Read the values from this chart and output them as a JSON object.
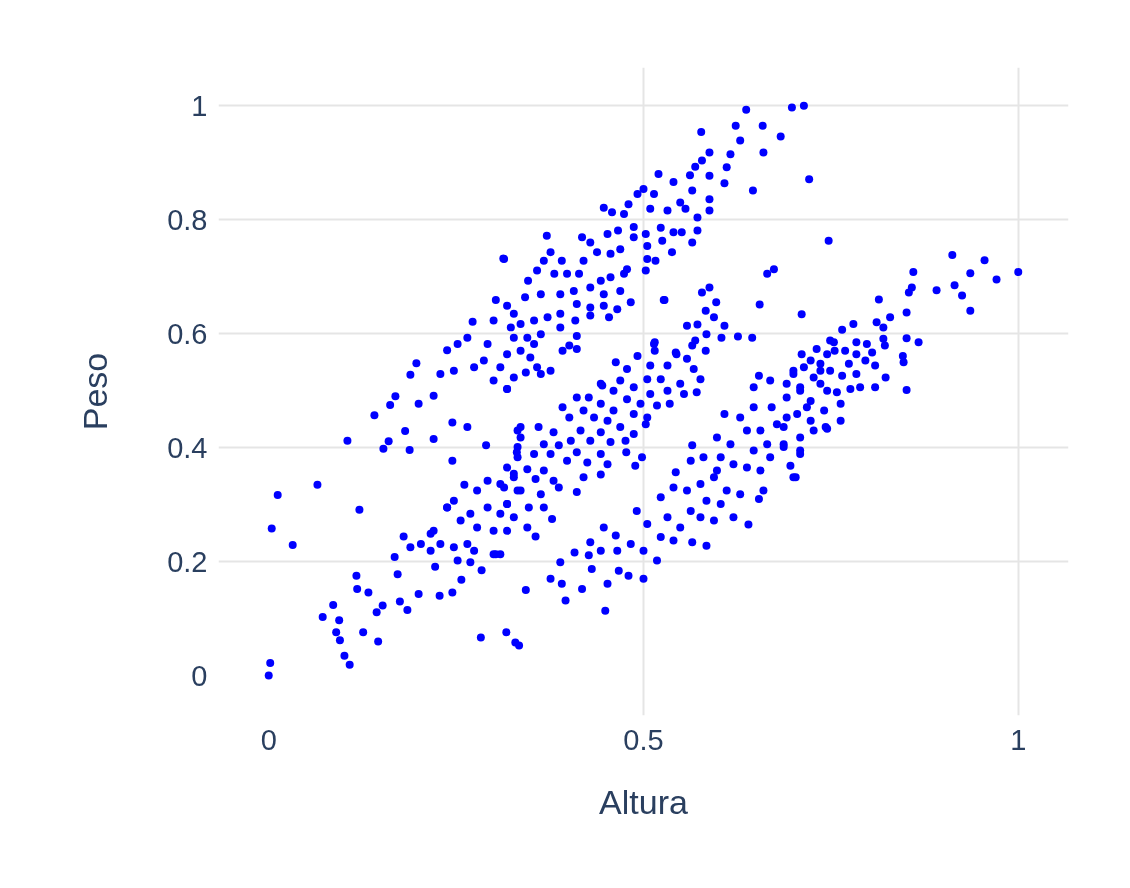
{
  "chart_data": {
    "type": "scatter",
    "xlabel": "Altura",
    "ylabel": "Peso",
    "color": "#0000ff",
    "marker": "circle",
    "grid": true,
    "xlim": [
      -0.067,
      1.067
    ],
    "ylim": [
      -0.07,
      1.067
    ],
    "xticks": [
      0,
      0.5,
      1
    ],
    "yticks": [
      0,
      0.2,
      0.4,
      0.6,
      0.8,
      1
    ],
    "x": [
      0.0,
      0.002,
      0.004,
      0.012,
      0.032,
      0.065,
      0.105,
      0.121,
      0.072,
      0.086,
      0.094,
      0.09,
      0.095,
      0.101,
      0.108,
      0.126,
      0.146,
      0.117,
      0.118,
      0.133,
      0.144,
      0.152,
      0.168,
      0.172,
      0.18,
      0.189,
      0.175,
      0.185,
      0.2,
      0.222,
      0.228,
      0.245,
      0.257,
      0.284,
      0.216,
      0.238,
      0.261,
      0.3,
      0.283,
      0.317,
      0.329,
      0.334,
      0.141,
      0.162,
      0.169,
      0.153,
      0.16,
      0.188,
      0.182,
      0.2,
      0.22,
      0.245,
      0.29,
      0.245,
      0.265,
      0.313,
      0.303,
      0.272,
      0.238,
      0.197,
      0.189,
      0.22,
      0.3,
      0.318,
      0.265,
      0.252,
      0.287,
      0.323,
      0.327,
      0.292,
      0.274,
      0.229,
      0.247,
      0.3,
      0.309,
      0.637,
      0.698,
      0.714,
      0.577,
      0.623,
      0.659,
      0.683,
      0.66,
      0.629,
      0.616,
      0.588,
      0.578,
      0.569,
      0.611,
      0.588,
      0.562,
      0.608,
      0.721,
      0.646,
      0.52,
      0.54,
      0.565,
      0.5,
      0.514,
      0.492,
      0.588,
      0.588,
      0.549,
      0.48,
      0.447,
      0.458,
      0.474,
      0.509,
      0.532,
      0.556,
      0.572,
      0.747,
      0.487,
      0.523,
      0.54,
      0.572,
      0.551,
      0.565,
      0.525,
      0.538,
      0.503,
      0.505,
      0.466,
      0.452,
      0.418,
      0.371,
      0.429,
      0.487,
      0.469,
      0.456,
      0.438,
      0.376,
      0.314,
      0.505,
      0.516,
      0.503,
      0.478,
      0.42,
      0.391,
      0.367,
      0.414,
      0.398,
      0.381,
      0.358,
      0.346,
      0.443,
      0.456,
      0.474,
      0.429,
      0.407,
      0.389,
      0.363,
      0.342,
      0.318,
      0.447,
      0.469,
      0.483,
      0.527,
      0.411,
      0.429,
      0.447,
      0.465,
      0.389,
      0.372,
      0.354,
      0.336,
      0.429,
      0.454,
      0.409,
      0.389,
      0.363,
      0.345,
      0.327,
      0.411,
      0.401,
      0.411,
      0.392,
      0.354,
      0.336,
      0.318,
      0.349,
      0.358,
      0.343,
      0.376,
      0.327,
      0.363,
      0.318,
      0.665,
      0.674,
      0.578,
      0.588,
      0.528,
      0.597,
      0.655,
      0.711,
      0.583,
      0.594,
      0.608,
      0.558,
      0.572,
      0.584,
      0.604,
      0.626,
      0.645,
      0.515,
      0.515,
      0.569,
      0.583,
      0.492,
      0.543,
      0.558,
      0.567,
      0.463,
      0.509,
      0.532,
      0.478,
      0.576,
      0.549,
      0.445,
      0.505,
      0.523,
      0.469,
      0.487,
      0.532,
      0.554,
      0.571,
      0.46,
      0.509,
      0.411,
      0.427,
      0.478,
      0.496,
      0.443,
      0.518,
      0.535,
      0.392,
      0.42,
      0.46,
      0.487,
      0.505,
      0.401,
      0.434,
      0.452,
      0.503,
      0.469,
      0.336,
      0.36,
      0.38,
      0.416,
      0.443,
      0.487,
      0.403,
      0.429,
      0.456,
      0.476,
      0.336,
      0.367,
      0.387,
      0.331,
      0.354,
      0.376,
      0.411,
      0.443,
      0.477,
      0.498,
      0.398,
      0.425,
      0.452,
      0.489,
      0.318,
      0.345,
      0.367,
      0.327,
      0.356,
      0.38,
      0.42,
      0.443,
      0.314,
      0.336,
      0.363,
      0.387,
      0.411,
      0.318,
      0.347,
      0.367,
      0.327,
      0.378,
      0.345,
      0.318,
      0.356,
      0.309,
      0.343,
      0.514,
      0.443,
      0.544,
      0.565,
      0.238,
      0.247,
      0.278,
      0.292,
      0.309,
      0.327,
      0.332,
      0.269,
      0.292,
      0.309,
      0.318,
      0.256,
      0.278,
      0.3,
      0.22,
      0.229,
      0.247,
      0.265,
      0.274,
      0.252,
      0.269,
      0.303,
      0.203,
      0.216,
      0.332,
      0.332,
      0.332,
      0.376,
      0.391,
      0.396,
      0.418,
      0.449,
      0.389,
      0.408,
      0.427,
      0.431,
      0.452,
      0.467,
      0.48,
      0.5,
      0.429,
      0.447,
      0.443,
      0.463,
      0.465,
      0.483,
      0.491,
      0.505,
      0.5,
      0.518,
      0.523,
      0.523,
      0.54,
      0.532,
      0.549,
      0.54,
      0.565,
      0.584,
      0.563,
      0.576,
      0.594,
      0.558,
      0.543,
      0.565,
      0.563,
      0.58,
      0.576,
      0.594,
      0.584,
      0.603,
      0.62,
      0.64,
      0.611,
      0.629,
      0.654,
      0.66,
      0.608,
      0.598,
      0.616,
      0.629,
      0.638,
      0.603,
      0.62,
      0.638,
      0.656,
      0.598,
      0.647,
      0.665,
      0.656,
      0.647,
      0.647,
      0.654,
      0.669,
      0.671,
      0.678,
      0.687,
      0.7,
      0.709,
      0.691,
      0.7,
      0.709,
      0.718,
      0.727,
      0.723,
      0.736,
      0.745,
      0.755,
      0.749,
      0.743,
      0.691,
      0.669,
      0.912,
      0.955,
      1.0,
      0.936,
      0.971,
      0.86,
      0.858,
      0.891,
      0.915,
      0.925,
      0.936,
      0.814,
      0.854,
      0.851,
      0.829,
      0.811,
      0.78,
      0.765,
      0.82,
      0.851,
      0.867,
      0.82,
      0.754,
      0.784,
      0.798,
      0.822,
      0.731,
      0.769,
      0.805,
      0.846,
      0.711,
      0.745,
      0.784,
      0.847,
      0.796,
      0.774,
      0.736,
      0.714,
      0.809,
      0.749,
      0.784,
      0.765,
      0.823,
      0.7,
      0.727,
      0.709,
      0.736,
      0.789,
      0.809,
      0.851,
      0.758,
      0.776,
      0.691,
      0.723,
      0.763,
      0.741,
      0.705,
      0.723,
      0.763,
      0.745,
      0.687,
      0.709,
      0.687,
      0.709,
      0.696,
      0.703
    ],
    "values": [
      0.0,
      0.022,
      0.258,
      0.317,
      0.229,
      0.335,
      0.412,
      0.291,
      0.103,
      0.124,
      0.097,
      0.076,
      0.062,
      0.035,
      0.019,
      0.076,
      0.06,
      0.175,
      0.152,
      0.146,
      0.111,
      0.123,
      0.208,
      0.178,
      0.244,
      0.225,
      0.13,
      0.115,
      0.143,
      0.191,
      0.14,
      0.146,
      0.168,
      0.185,
      0.249,
      0.295,
      0.335,
      0.213,
      0.067,
      0.076,
      0.058,
      0.053,
      0.457,
      0.475,
      0.49,
      0.398,
      0.411,
      0.396,
      0.429,
      0.477,
      0.415,
      0.377,
      0.404,
      0.444,
      0.436,
      0.732,
      0.659,
      0.621,
      0.571,
      0.548,
      0.528,
      0.491,
      0.518,
      0.503,
      0.593,
      0.582,
      0.553,
      0.611,
      0.635,
      0.582,
      0.541,
      0.529,
      0.535,
      0.623,
      0.541,
      0.993,
      0.997,
      1.0,
      0.954,
      0.965,
      0.965,
      0.946,
      0.918,
      0.939,
      0.915,
      0.918,
      0.904,
      0.893,
      0.892,
      0.877,
      0.878,
      0.864,
      0.871,
      0.851,
      0.88,
      0.866,
      0.851,
      0.854,
      0.845,
      0.845,
      0.836,
      0.816,
      0.83,
      0.827,
      0.821,
      0.813,
      0.81,
      0.819,
      0.816,
      0.819,
      0.804,
      0.763,
      0.787,
      0.786,
      0.778,
      0.781,
      0.778,
      0.76,
      0.763,
      0.743,
      0.775,
      0.754,
      0.781,
      0.775,
      0.769,
      0.772,
      0.76,
      0.769,
      0.748,
      0.74,
      0.743,
      0.743,
      0.731,
      0.731,
      0.728,
      0.711,
      0.713,
      0.728,
      0.728,
      0.728,
      0.705,
      0.705,
      0.705,
      0.711,
      0.693,
      0.693,
      0.699,
      0.705,
      0.681,
      0.675,
      0.669,
      0.669,
      0.664,
      0.649,
      0.669,
      0.675,
      0.655,
      0.659,
      0.652,
      0.646,
      0.649,
      0.643,
      0.635,
      0.629,
      0.623,
      0.617,
      0.632,
      0.629,
      0.623,
      0.611,
      0.599,
      0.593,
      0.593,
      0.596,
      0.579,
      0.573,
      0.57,
      0.582,
      0.57,
      0.564,
      0.558,
      0.541,
      0.532,
      0.535,
      0.523,
      0.529,
      0.503,
      0.705,
      0.713,
      0.672,
      0.681,
      0.659,
      0.655,
      0.651,
      0.634,
      0.64,
      0.629,
      0.614,
      0.614,
      0.616,
      0.599,
      0.593,
      0.595,
      0.593,
      0.585,
      0.57,
      0.588,
      0.57,
      0.561,
      0.567,
      0.556,
      0.538,
      0.55,
      0.544,
      0.544,
      0.538,
      0.52,
      0.512,
      0.509,
      0.52,
      0.52,
      0.518,
      0.506,
      0.5,
      0.494,
      0.497,
      0.5,
      0.494,
      0.488,
      0.488,
      0.485,
      0.477,
      0.477,
      0.474,
      0.477,
      0.471,
      0.465,
      0.465,
      0.459,
      0.453,
      0.453,
      0.453,
      0.447,
      0.441,
      0.436,
      0.436,
      0.436,
      0.427,
      0.43,
      0.427,
      0.424,
      0.412,
      0.412,
      0.41,
      0.412,
      0.418,
      0.406,
      0.404,
      0.392,
      0.389,
      0.389,
      0.392,
      0.389,
      0.392,
      0.383,
      0.377,
      0.374,
      0.371,
      0.368,
      0.365,
      0.362,
      0.36,
      0.348,
      0.345,
      0.342,
      0.348,
      0.353,
      0.33,
      0.325,
      0.318,
      0.33,
      0.322,
      0.301,
      0.295,
      0.295,
      0.278,
      0.275,
      0.26,
      0.254,
      0.244,
      0.213,
      0.15,
      0.582,
      0.512,
      0.564,
      0.579,
      0.295,
      0.307,
      0.325,
      0.342,
      0.336,
      0.354,
      0.325,
      0.284,
      0.295,
      0.284,
      0.301,
      0.272,
      0.26,
      0.254,
      0.254,
      0.231,
      0.225,
      0.231,
      0.219,
      0.202,
      0.199,
      0.213,
      0.231,
      0.219,
      0.383,
      0.43,
      0.401,
      0.17,
      0.161,
      0.132,
      0.152,
      0.114,
      0.199,
      0.216,
      0.211,
      0.187,
      0.161,
      0.184,
      0.175,
      0.17,
      0.234,
      0.26,
      0.219,
      0.246,
      0.219,
      0.231,
      0.289,
      0.266,
      0.219,
      0.202,
      0.243,
      0.313,
      0.33,
      0.278,
      0.26,
      0.237,
      0.234,
      0.228,
      0.289,
      0.278,
      0.272,
      0.325,
      0.357,
      0.404,
      0.377,
      0.383,
      0.336,
      0.348,
      0.307,
      0.301,
      0.278,
      0.265,
      0.325,
      0.318,
      0.31,
      0.325,
      0.459,
      0.418,
      0.406,
      0.453,
      0.43,
      0.383,
      0.371,
      0.365,
      0.36,
      0.36,
      0.395,
      0.406,
      0.43,
      0.471,
      0.506,
      0.526,
      0.518,
      0.471,
      0.441,
      0.406,
      0.348,
      0.395,
      0.512,
      0.535,
      0.5,
      0.471,
      0.43,
      0.553,
      0.535,
      0.5,
      0.57,
      0.588,
      0.436,
      0.453,
      0.383,
      0.738,
      0.729,
      0.708,
      0.706,
      0.695,
      0.708,
      0.681,
      0.676,
      0.685,
      0.667,
      0.64,
      0.66,
      0.672,
      0.637,
      0.629,
      0.62,
      0.617,
      0.607,
      0.611,
      0.592,
      0.585,
      0.591,
      0.585,
      0.585,
      0.582,
      0.579,
      0.573,
      0.57,
      0.567,
      0.561,
      0.564,
      0.564,
      0.564,
      0.55,
      0.553,
      0.547,
      0.547,
      0.541,
      0.544,
      0.535,
      0.529,
      0.526,
      0.523,
      0.529,
      0.523,
      0.506,
      0.512,
      0.506,
      0.506,
      0.501,
      0.497,
      0.503,
      0.488,
      0.482,
      0.477,
      0.465,
      0.459,
      0.447,
      0.447,
      0.433,
      0.436,
      0.418,
      0.401,
      0.389,
      0.368,
      0.348
    ]
  }
}
